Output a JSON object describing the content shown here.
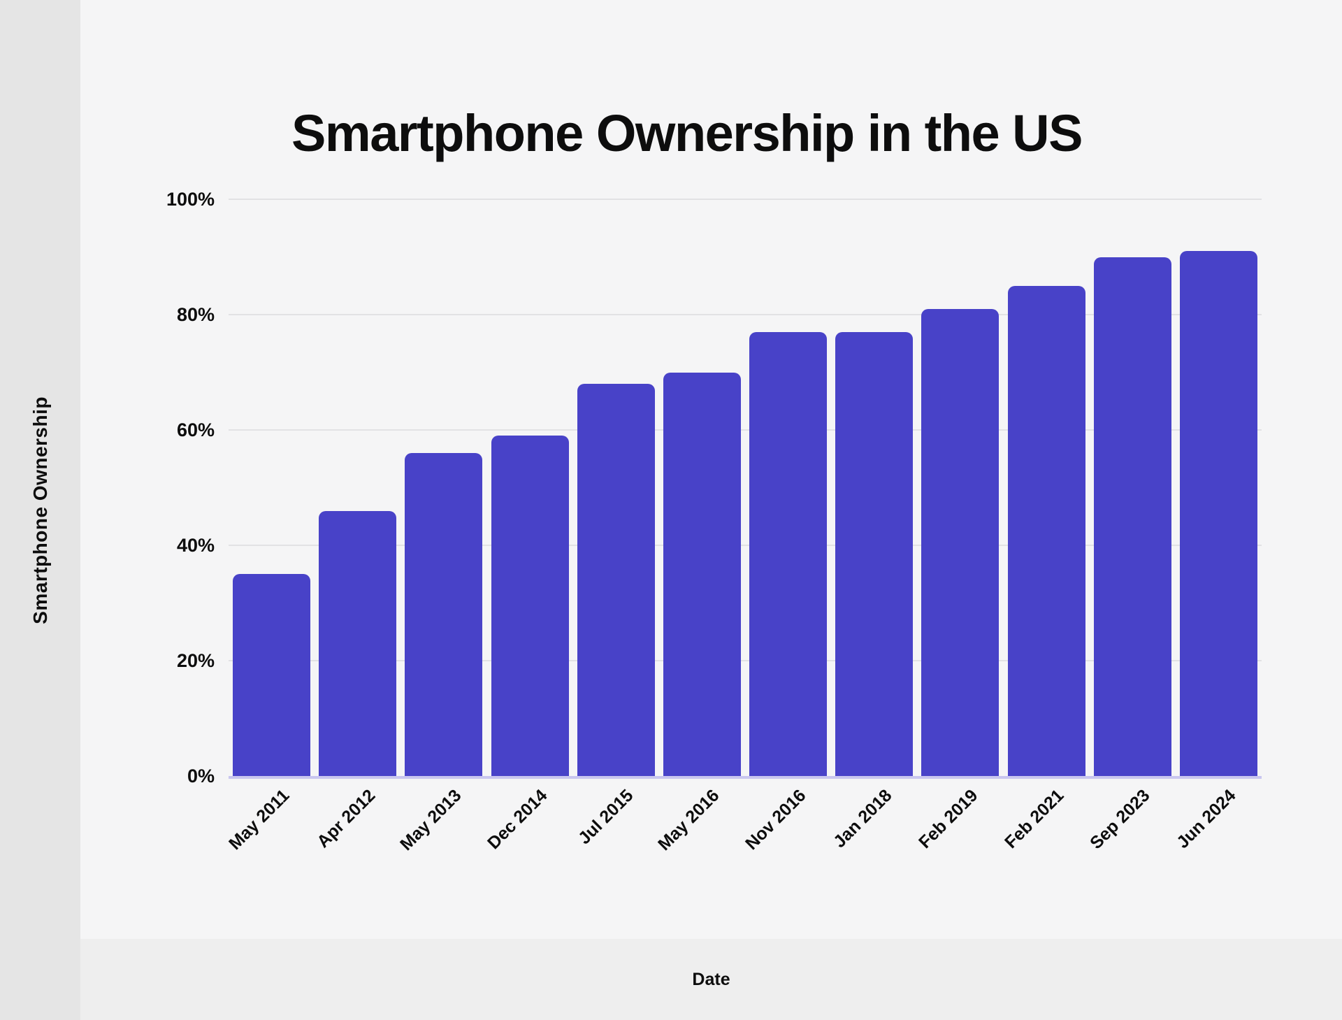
{
  "page": {
    "background_color": "#f5f5f6",
    "left_strip_color": "#e5e5e5",
    "bottom_band_color": "#eeeeee",
    "text_color": "#0d0d0d"
  },
  "chart_data": {
    "type": "bar",
    "title": "Smartphone Ownership in the US",
    "xlabel": "Date",
    "ylabel": "Smartphone Ownership",
    "categories": [
      "May 2011",
      "Apr 2012",
      "May 2013",
      "Dec 2014",
      "Jul 2015",
      "May 2016",
      "Nov 2016",
      "Jan 2018",
      "Feb 2019",
      "Feb 2021",
      "Sep 2023",
      "Jun 2024"
    ],
    "values": [
      35,
      46,
      56,
      59,
      68,
      70,
      77,
      77,
      81,
      85,
      90,
      91
    ],
    "unit": "%",
    "ylim": [
      0,
      100
    ],
    "yticks": [
      "0%",
      "20%",
      "40%",
      "60%",
      "80%",
      "100%"
    ],
    "grid": true,
    "legend": "none",
    "bar_color": "#4842c8",
    "gridline_color": "#e2e2e4",
    "baseline_color": "#c9c6ef"
  }
}
